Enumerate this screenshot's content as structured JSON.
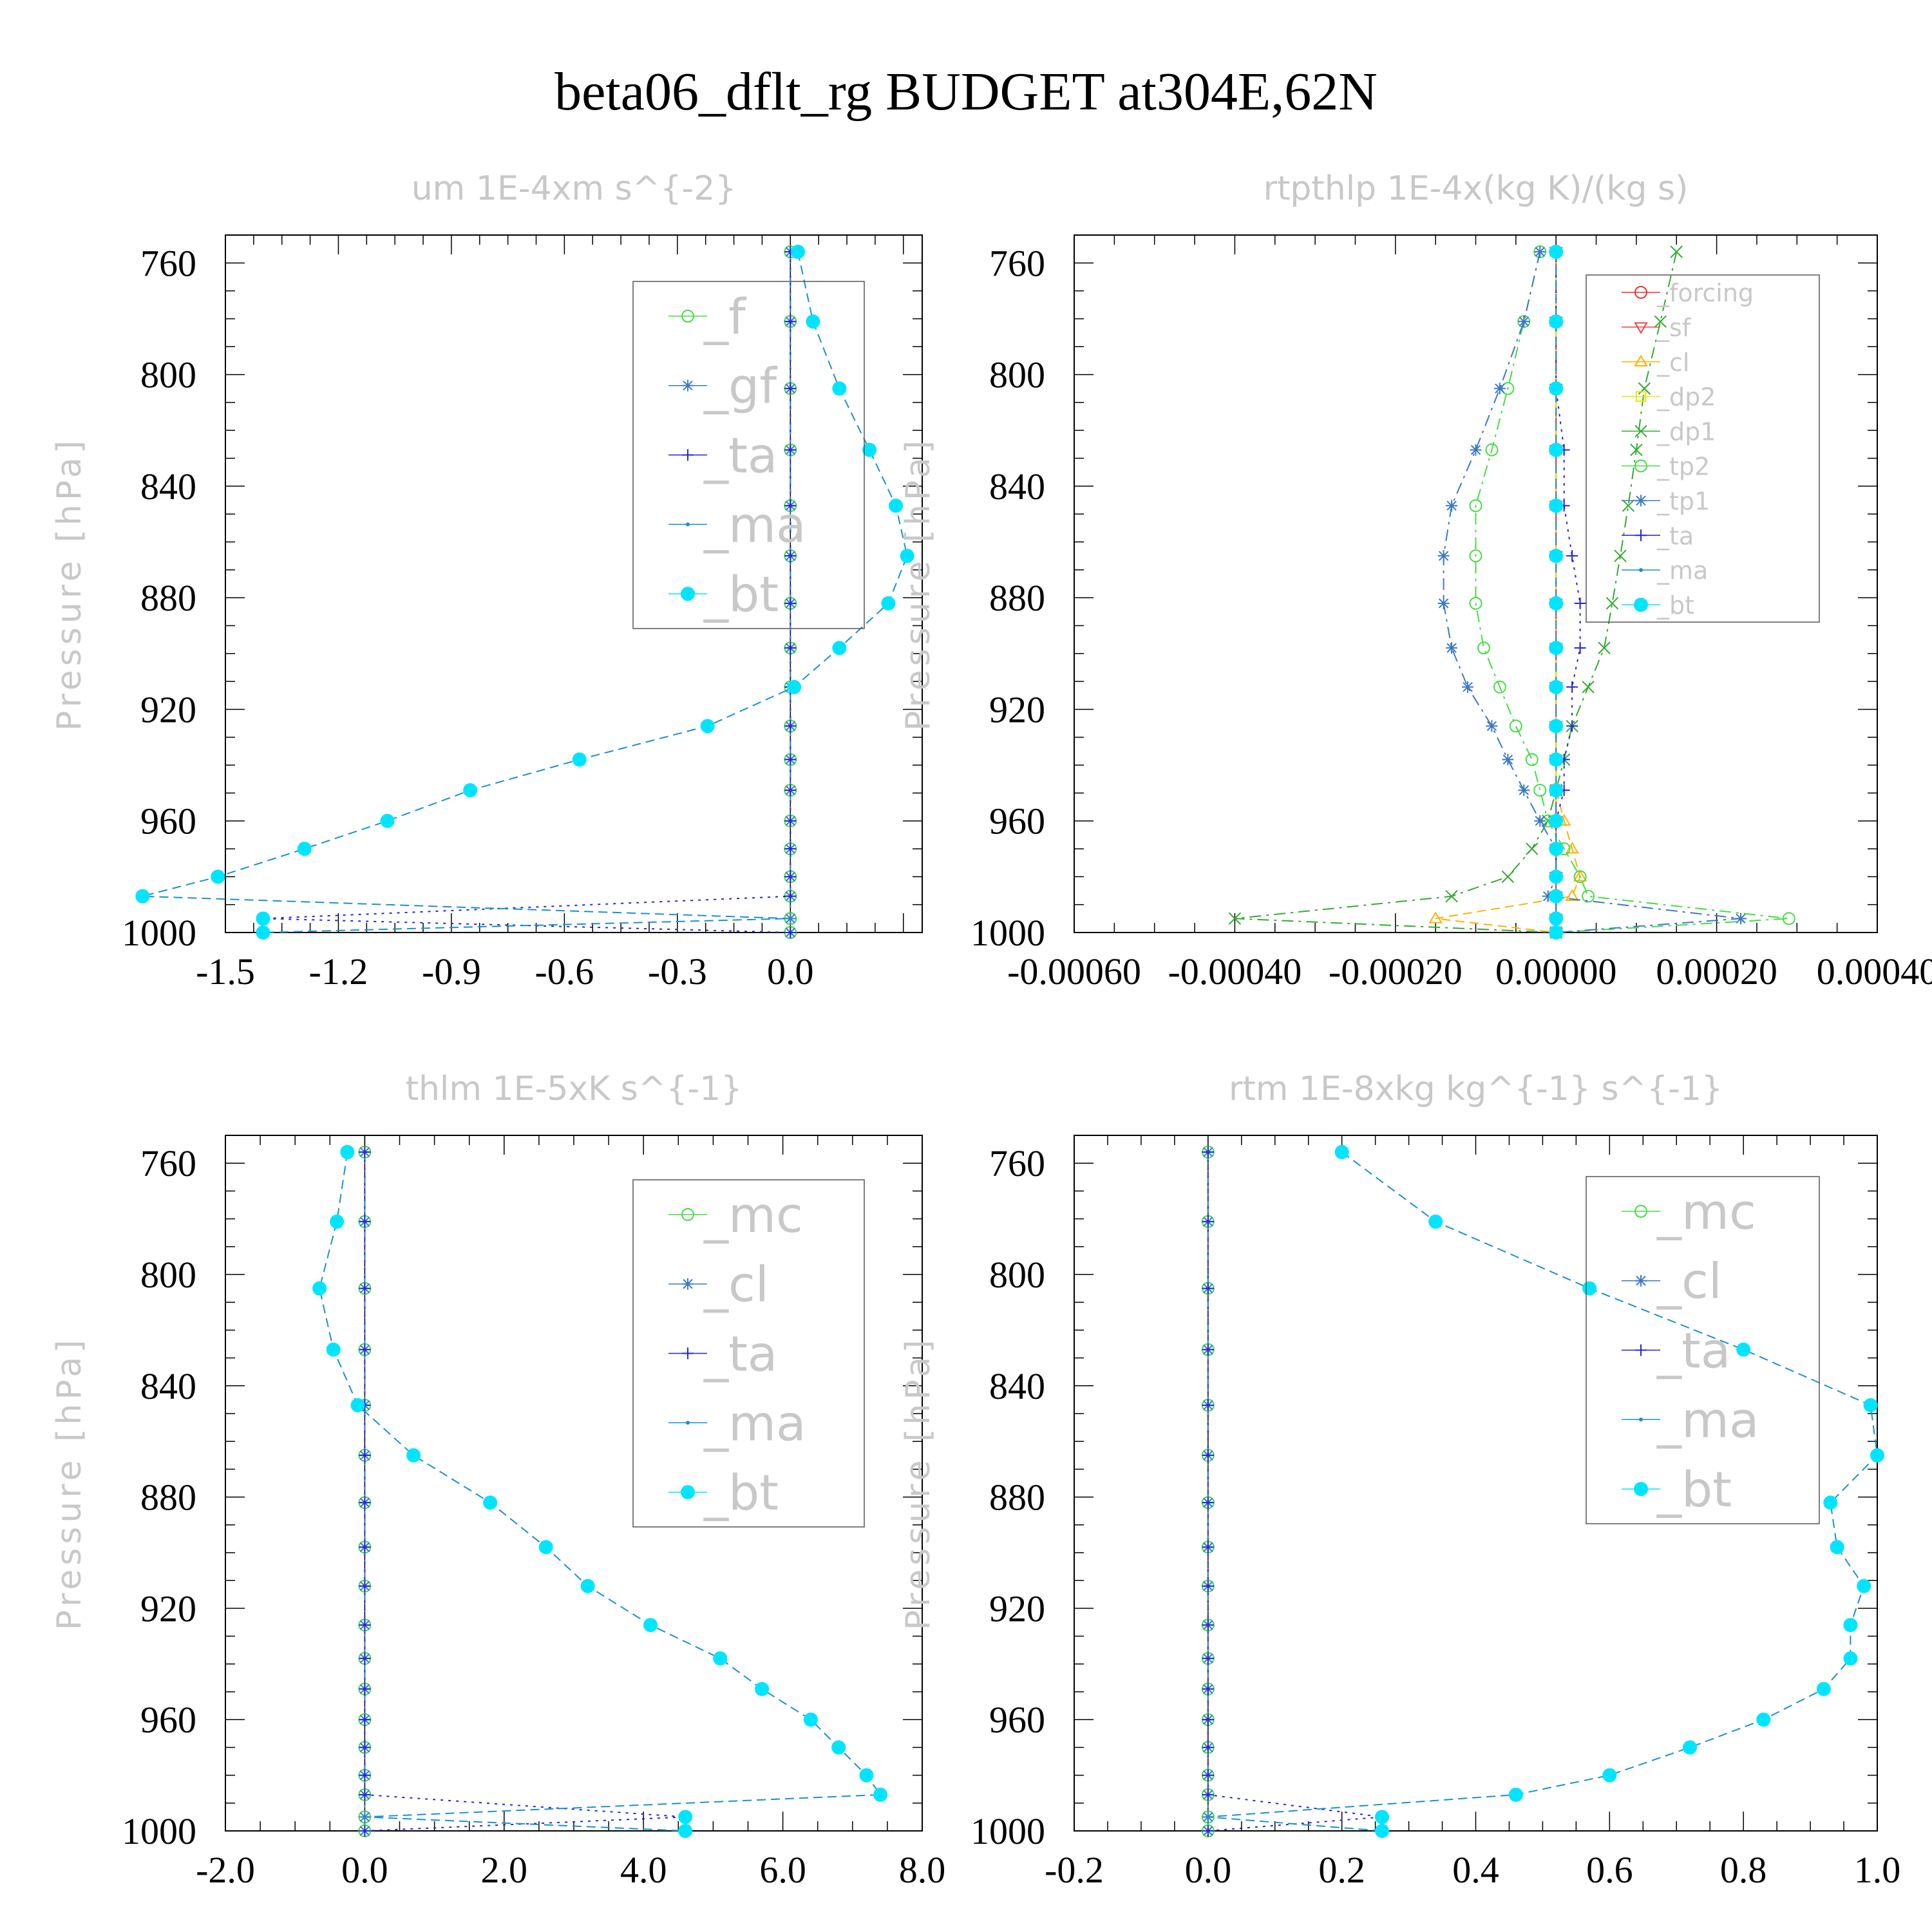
{
  "title": "beta06_dflt_rg  BUDGET at304E,62N",
  "chart_data": [
    {
      "type": "line",
      "title": "um   1E-4xm s^{-2}",
      "ylabel": "Pressure [hPa]",
      "y_ticks": [
        760,
        800,
        840,
        880,
        920,
        960,
        1000
      ],
      "x_tick_labels": [
        "-1.5",
        "-1.2",
        "-0.9",
        "-0.6",
        "-0.3",
        "0.0"
      ],
      "x_ticks": [
        -1.5,
        -1.2,
        -0.9,
        -0.6,
        -0.3,
        0.0
      ],
      "xlim": [
        -1.5,
        0.35
      ],
      "ylim": [
        750,
        1000
      ],
      "pressure": [
        756,
        781,
        805,
        827,
        847,
        865,
        882,
        898,
        912,
        926,
        938,
        949,
        960,
        970,
        980,
        987,
        995,
        1000
      ],
      "legend": [
        "_f",
        "_gf",
        "_ta",
        "_ma",
        "_bt"
      ],
      "series": [
        {
          "name": "_f",
          "color": "#44dd44",
          "marker": "circle",
          "dash": "dashdot",
          "values": [
            0,
            0,
            0,
            0,
            0,
            0,
            0,
            0,
            0,
            0,
            0,
            0,
            0,
            0,
            0,
            0,
            0,
            0
          ]
        },
        {
          "name": "_gf",
          "color": "#3a78c8",
          "marker": "star",
          "dash": "dashdot",
          "values": [
            0,
            0,
            0,
            0,
            0,
            0,
            0,
            0,
            0,
            0,
            0,
            0,
            0,
            0,
            0,
            0,
            0,
            0
          ]
        },
        {
          "name": "_ta",
          "color": "#2222dd",
          "marker": "plus",
          "dash": "dot",
          "values": [
            0,
            0,
            0,
            0,
            0,
            0,
            0,
            0,
            0,
            0,
            0,
            0,
            0,
            0,
            0,
            0,
            -1.4,
            0
          ]
        },
        {
          "name": "_ma",
          "color": "#1890d0",
          "marker": "dot",
          "dash": "dash",
          "values": [
            0.02,
            0.06,
            0.13,
            0.21,
            0.28,
            0.31,
            0.26,
            0.13,
            0.01,
            -0.22,
            -0.56,
            -0.85,
            -1.07,
            -1.29,
            -1.52,
            -1.72,
            0,
            -1.4
          ]
        },
        {
          "name": "_bt",
          "color": "#00e5ff",
          "marker": "bigdot",
          "dash": "none",
          "values": [
            0.02,
            0.06,
            0.13,
            0.21,
            0.28,
            0.31,
            0.26,
            0.13,
            0.01,
            -0.22,
            -0.56,
            -0.85,
            -1.07,
            -1.29,
            -1.52,
            -1.72,
            -1.4,
            -1.4
          ]
        }
      ]
    },
    {
      "type": "line",
      "title": "rtpthlp   1E-4x(kg K)/(kg s)",
      "ylabel": "Pressure [hPa]",
      "y_ticks": [
        760,
        800,
        840,
        880,
        920,
        960,
        1000
      ],
      "x_tick_labels": [
        "-0.00060",
        "-0.00040",
        "-0.00020",
        "0.00000",
        "0.00020",
        "0.00040"
      ],
      "x_ticks": [
        -0.0006,
        -0.0004,
        -0.0002,
        0.0,
        0.0002,
        0.0004
      ],
      "xlim": [
        -0.0006,
        0.0004
      ],
      "ylim": [
        750,
        1000
      ],
      "pressure": [
        756,
        781,
        805,
        827,
        847,
        865,
        882,
        898,
        912,
        926,
        938,
        949,
        960,
        970,
        980,
        987,
        995,
        1000
      ],
      "legend": [
        "_forcing",
        "_sf",
        "_cl",
        "_dp2",
        "_dp1",
        "_tp2",
        "_tp1",
        "_ta",
        "_ma",
        "_bt"
      ],
      "series": [
        {
          "name": "_forcing",
          "color": "#dd3333",
          "marker": "circle",
          "dash": "solid",
          "values": [
            0,
            0,
            0,
            0,
            0,
            0,
            0,
            0,
            0,
            0,
            0,
            0,
            0,
            0,
            0,
            0,
            0,
            0
          ]
        },
        {
          "name": "_sf",
          "color": "#ee4444",
          "marker": "triangle-down",
          "dash": "dash",
          "values": [
            0,
            0,
            0,
            0,
            0,
            0,
            0,
            0,
            0,
            0,
            0,
            0,
            0,
            0,
            0,
            0,
            0,
            0
          ]
        },
        {
          "name": "_cl",
          "color": "#ffb000",
          "marker": "triangle",
          "dash": "dash",
          "values": [
            0,
            0,
            0,
            0,
            0,
            0,
            0,
            0,
            0,
            0,
            0,
            0,
            1e-05,
            2e-05,
            3e-05,
            2e-05,
            -0.00015,
            0
          ]
        },
        {
          "name": "_dp2",
          "color": "#e6e600",
          "marker": "square",
          "dash": "dashdot",
          "values": [
            0,
            0,
            0,
            0,
            0,
            0,
            0,
            0,
            0,
            0,
            0,
            0,
            0,
            0,
            0,
            0,
            0,
            0
          ]
        },
        {
          "name": "_dp1",
          "color": "#33aa33",
          "marker": "x",
          "dash": "dashdot",
          "values": [
            0.00015,
            0.00013,
            0.00011,
            0.0001,
            9e-05,
            8e-05,
            7e-05,
            6e-05,
            4e-05,
            2e-05,
            1e-05,
            0,
            -1e-05,
            -3e-05,
            -6e-05,
            -0.00013,
            -0.0004,
            0
          ]
        },
        {
          "name": "_tp2",
          "color": "#44dd44",
          "marker": "circle",
          "dash": "dashdot",
          "values": [
            -2e-05,
            -4e-05,
            -6e-05,
            -8e-05,
            -0.0001,
            -0.0001,
            -0.0001,
            -9e-05,
            -7e-05,
            -5e-05,
            -3e-05,
            -2e-05,
            -1e-05,
            1e-05,
            3e-05,
            4e-05,
            0.00029,
            0
          ]
        },
        {
          "name": "_tp1",
          "color": "#3a78c8",
          "marker": "star",
          "dash": "dashdot",
          "values": [
            -2e-05,
            -4e-05,
            -7e-05,
            -0.0001,
            -0.00013,
            -0.00014,
            -0.00014,
            -0.00013,
            -0.00011,
            -8e-05,
            -6e-05,
            -4e-05,
            -2e-05,
            0,
            0,
            -1e-05,
            0.00023,
            0
          ]
        },
        {
          "name": "_ta",
          "color": "#2222dd",
          "marker": "plus",
          "dash": "dot",
          "values": [
            0,
            0,
            0,
            1e-05,
            1e-05,
            2e-05,
            3e-05,
            3e-05,
            2e-05,
            2e-05,
            1e-05,
            1e-05,
            0,
            0,
            0,
            0,
            0,
            0
          ]
        },
        {
          "name": "_ma",
          "color": "#1890d0",
          "marker": "dot",
          "dash": "dash",
          "values": [
            0,
            0,
            0,
            0,
            0,
            0,
            0,
            0,
            0,
            0,
            0,
            0,
            0,
            0,
            0,
            0,
            0,
            0
          ]
        },
        {
          "name": "_bt",
          "color": "#00e5ff",
          "marker": "bigdot",
          "dash": "none",
          "values": [
            0,
            0,
            0,
            0,
            0,
            0,
            0,
            0,
            0,
            0,
            0,
            0,
            0,
            0,
            0,
            0,
            0,
            0
          ]
        }
      ]
    },
    {
      "type": "line",
      "title": "thlm   1E-5xK s^{-1}",
      "ylabel": "Pressure [hPa]",
      "y_ticks": [
        760,
        800,
        840,
        880,
        920,
        960,
        1000
      ],
      "x_tick_labels": [
        "-2.0",
        "0.0",
        "2.0",
        "4.0",
        "6.0",
        "8.0"
      ],
      "x_ticks": [
        -2.0,
        0.0,
        2.0,
        4.0,
        6.0,
        8.0
      ],
      "xlim": [
        -2.0,
        8.0
      ],
      "ylim": [
        750,
        1000
      ],
      "pressure": [
        756,
        781,
        805,
        827,
        847,
        865,
        882,
        898,
        912,
        926,
        938,
        949,
        960,
        970,
        980,
        987,
        995,
        1000
      ],
      "legend": [
        "_mc",
        "_cl",
        "_ta",
        "_ma",
        "_bt"
      ],
      "series": [
        {
          "name": "_mc",
          "color": "#44dd44",
          "marker": "circle",
          "dash": "dashdot",
          "values": [
            0,
            0,
            0,
            0,
            0,
            0,
            0,
            0,
            0,
            0,
            0,
            0,
            0,
            0,
            0,
            0,
            0,
            0
          ]
        },
        {
          "name": "_cl",
          "color": "#3a78c8",
          "marker": "star",
          "dash": "dashdot",
          "values": [
            0,
            0,
            0,
            0,
            0,
            0,
            0,
            0,
            0,
            0,
            0,
            0,
            0,
            0,
            0,
            0,
            0,
            0
          ]
        },
        {
          "name": "_ta",
          "color": "#2222dd",
          "marker": "plus",
          "dash": "dot",
          "values": [
            0,
            0,
            0,
            0,
            0,
            0,
            0,
            0,
            0,
            0,
            0,
            0,
            0,
            0,
            0,
            0,
            4.6,
            0
          ]
        },
        {
          "name": "_ma",
          "color": "#1890d0",
          "marker": "dot",
          "dash": "dash",
          "values": [
            -0.25,
            -0.4,
            -0.65,
            -0.45,
            -0.1,
            0.7,
            1.8,
            2.6,
            3.2,
            4.1,
            5.1,
            5.7,
            6.4,
            6.8,
            7.2,
            7.4,
            0,
            4.6
          ]
        },
        {
          "name": "_bt",
          "color": "#00e5ff",
          "marker": "bigdot",
          "dash": "none",
          "values": [
            -0.25,
            -0.4,
            -0.65,
            -0.45,
            -0.1,
            0.7,
            1.8,
            2.6,
            3.2,
            4.1,
            5.1,
            5.7,
            6.4,
            6.8,
            7.2,
            7.4,
            4.6,
            4.6
          ]
        }
      ]
    },
    {
      "type": "line",
      "title": "rtm   1E-8xkg kg^{-1} s^{-1}",
      "ylabel": "Pressure [hPa]",
      "y_ticks": [
        760,
        800,
        840,
        880,
        920,
        960,
        1000
      ],
      "x_tick_labels": [
        "-0.2",
        "0.0",
        "0.2",
        "0.4",
        "0.6",
        "0.8",
        "1.0"
      ],
      "x_ticks": [
        -0.2,
        0.0,
        0.2,
        0.4,
        0.6,
        0.8,
        1.0
      ],
      "xlim": [
        -0.2,
        1.0
      ],
      "ylim": [
        750,
        1000
      ],
      "pressure": [
        756,
        781,
        805,
        827,
        847,
        865,
        882,
        898,
        912,
        926,
        938,
        949,
        960,
        970,
        980,
        987,
        995,
        1000
      ],
      "legend": [
        "_mc",
        "_cl",
        "_ta",
        "_ma",
        "_bt"
      ],
      "series": [
        {
          "name": "_mc",
          "color": "#44dd44",
          "marker": "circle",
          "dash": "dashdot",
          "values": [
            0,
            0,
            0,
            0,
            0,
            0,
            0,
            0,
            0,
            0,
            0,
            0,
            0,
            0,
            0,
            0,
            0,
            0
          ]
        },
        {
          "name": "_cl",
          "color": "#3a78c8",
          "marker": "star",
          "dash": "dashdot",
          "values": [
            0,
            0,
            0,
            0,
            0,
            0,
            0,
            0,
            0,
            0,
            0,
            0,
            0,
            0,
            0,
            0,
            0,
            0
          ]
        },
        {
          "name": "_ta",
          "color": "#2222dd",
          "marker": "plus",
          "dash": "dot",
          "values": [
            0,
            0,
            0,
            0,
            0,
            0,
            0,
            0,
            0,
            0,
            0,
            0,
            0,
            0,
            0,
            0,
            0.26,
            0
          ]
        },
        {
          "name": "_ma",
          "color": "#1890d0",
          "marker": "dot",
          "dash": "dash",
          "values": [
            0.2,
            0.34,
            0.57,
            0.8,
            0.99,
            1.0,
            0.93,
            0.94,
            0.98,
            0.96,
            0.96,
            0.92,
            0.83,
            0.72,
            0.6,
            0.46,
            0,
            0.26
          ]
        },
        {
          "name": "_bt",
          "color": "#00e5ff",
          "marker": "bigdot",
          "dash": "none",
          "values": [
            0.2,
            0.34,
            0.57,
            0.8,
            0.99,
            1.0,
            0.93,
            0.94,
            0.98,
            0.96,
            0.96,
            0.92,
            0.83,
            0.72,
            0.6,
            0.46,
            0.26,
            0.26
          ]
        }
      ]
    }
  ]
}
